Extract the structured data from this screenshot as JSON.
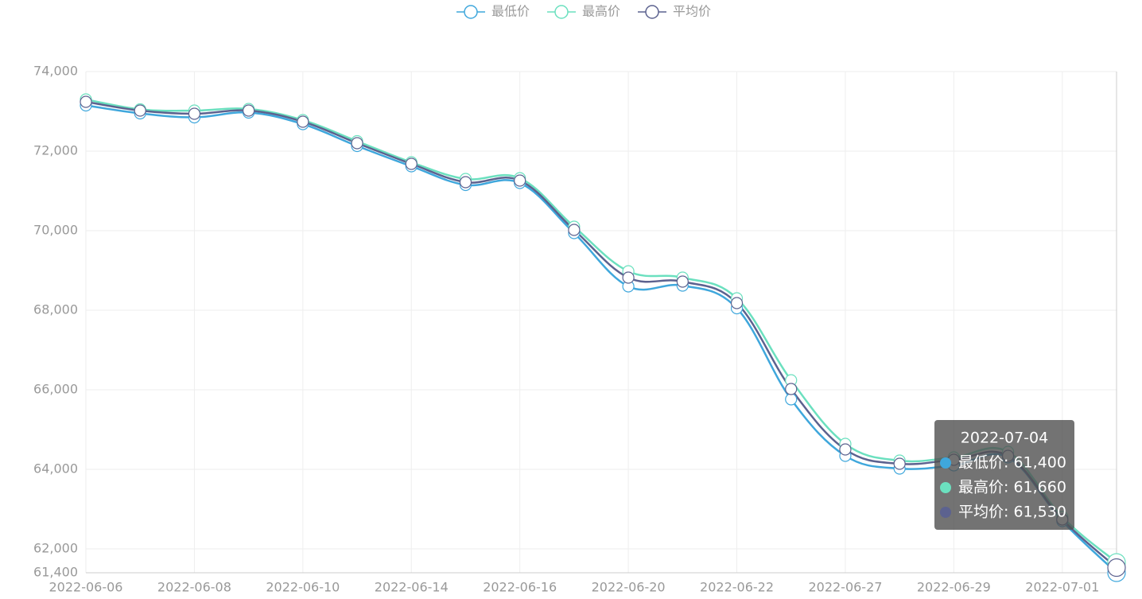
{
  "chart_data": {
    "type": "line",
    "categories": [
      "2022-06-06",
      null,
      "2022-06-08",
      null,
      "2022-06-10",
      null,
      "2022-06-14",
      null,
      "2022-06-16",
      null,
      "2022-06-20",
      null,
      "2022-06-22",
      null,
      "2022-06-27",
      null,
      "2022-06-29",
      null,
      "2022-07-01",
      null
    ],
    "series": [
      {
        "name": "最低价",
        "color": "#3fa7dc",
        "values": [
          73150,
          72950,
          72850,
          72970,
          72680,
          72130,
          71620,
          71150,
          71200,
          69940,
          68600,
          68620,
          68050,
          65760,
          64340,
          64020,
          64100,
          64300,
          62700,
          61400
        ]
      },
      {
        "name": "最高价",
        "color": "#6be0bf",
        "values": [
          73300,
          73050,
          73020,
          73060,
          72780,
          72250,
          71720,
          71300,
          71320,
          70100,
          68980,
          68820,
          68300,
          66240,
          64640,
          64220,
          64300,
          64440,
          62800,
          61660
        ]
      },
      {
        "name": "平均价",
        "color": "#5c628f",
        "values": [
          73240,
          73020,
          72940,
          73020,
          72740,
          72200,
          71680,
          71220,
          71260,
          70020,
          68820,
          68720,
          68180,
          66020,
          64500,
          64140,
          64240,
          64340,
          62740,
          61530
        ]
      }
    ],
    "ylim": [
      61400,
      74000
    ],
    "yticks": [
      {
        "value": 61400,
        "label": "61,400"
      },
      {
        "value": 62000,
        "label": "62,000"
      },
      {
        "value": 64000,
        "label": "64,000"
      },
      {
        "value": 66000,
        "label": "66,000"
      },
      {
        "value": 68000,
        "label": "68,000"
      },
      {
        "value": 70000,
        "label": "70,000"
      },
      {
        "value": 72000,
        "label": "72,000"
      },
      {
        "value": 74000,
        "label": "74,000"
      }
    ],
    "grid": true,
    "legend": "top",
    "tooltip": {
      "title": "2022-07-04",
      "rows": [
        "最低价: 61,400",
        "最高价: 61,660",
        "平均价: 61,530"
      ]
    }
  }
}
